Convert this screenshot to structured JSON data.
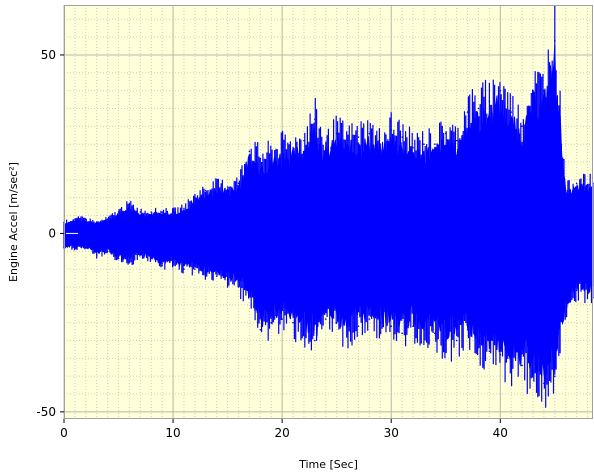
{
  "chart_data": {
    "type": "area",
    "title": "",
    "xlabel": "Time [Sec]",
    "ylabel": "Engine Accel [m/sec²]",
    "xlim": [
      0,
      48.5
    ],
    "ylim": [
      -52,
      64
    ],
    "x_ticks": [
      0,
      10,
      20,
      30,
      40
    ],
    "x_tick_labels": [
      "0",
      "10",
      "20",
      "30",
      "40"
    ],
    "y_ticks": [
      -50,
      0,
      50
    ],
    "y_tick_labels": [
      "-50",
      "0",
      "50"
    ],
    "grid": true,
    "legend": "none",
    "colors": {
      "plot_background": "#FFFFD9",
      "series": "#0000FF",
      "grid_major": "#b8b8a8",
      "grid_minor": "#cfcfbf",
      "frame": "#a0a0a0"
    },
    "series": [
      {
        "x": [
          0,
          1,
          2,
          3,
          4,
          5,
          6,
          7,
          8,
          9,
          10,
          11,
          12,
          13,
          14,
          15,
          16,
          17,
          18,
          19,
          20,
          21,
          22,
          23,
          24,
          25,
          26,
          27,
          28,
          29,
          30,
          31,
          32,
          33,
          34,
          35,
          36,
          37,
          38,
          39,
          40,
          41,
          42,
          43,
          44,
          45,
          46,
          47,
          48.5
        ],
        "upper": [
          3,
          4,
          4,
          3,
          4,
          6,
          8,
          6,
          6,
          6,
          6,
          7,
          10,
          12,
          13,
          13,
          14,
          23,
          21,
          22,
          24,
          24,
          26,
          32,
          24,
          28,
          26,
          27,
          28,
          25,
          29,
          27,
          24,
          25,
          25,
          28,
          26,
          34,
          35,
          37,
          40,
          34,
          30,
          40,
          40,
          54,
          12,
          14,
          14
        ],
        "lower": [
          -4,
          -4,
          -4,
          -6,
          -5,
          -7,
          -8,
          -6,
          -7,
          -9,
          -8,
          -10,
          -10,
          -11,
          -12,
          -13,
          -15,
          -17,
          -27,
          -25,
          -24,
          -25,
          -27,
          -30,
          -24,
          -25,
          -28,
          -26,
          -24,
          -25,
          -26,
          -28,
          -26,
          -27,
          -28,
          -30,
          -30,
          -27,
          -32,
          -33,
          -34,
          -36,
          -37,
          -39,
          -42,
          -40,
          -22,
          -16,
          -18
        ]
      }
    ]
  }
}
